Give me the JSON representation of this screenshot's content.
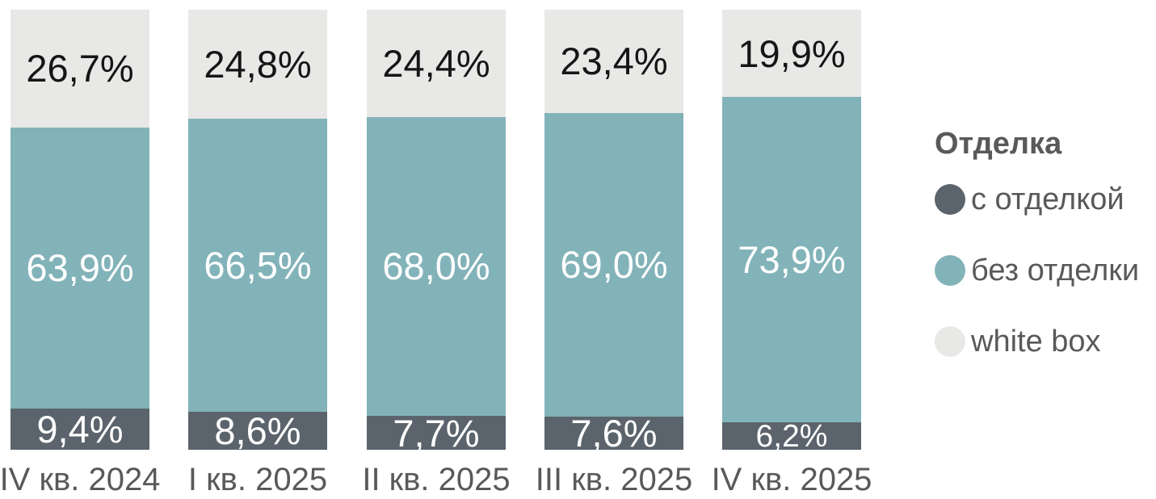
{
  "chart_data": {
    "type": "bar",
    "variant": "stacked-100",
    "title": "",
    "xlabel": "",
    "ylabel": "",
    "unit": "%",
    "ylim": [
      0,
      100
    ],
    "grid": false,
    "legend": {
      "title": "Отделка",
      "position": "right"
    },
    "categories": [
      "IV кв. 2024",
      "I кв. 2025",
      "II кв. 2025",
      "III кв. 2025",
      "IV кв. 2025"
    ],
    "series": [
      {
        "name": "с отделкой",
        "color": "#5b646c",
        "text_color": "#ffffff",
        "values": [
          9.4,
          8.6,
          7.7,
          7.6,
          6.2
        ],
        "labels": [
          "9,4%",
          "8,6%",
          "7,7%",
          "7,6%",
          "6,2%"
        ]
      },
      {
        "name": "без отделки",
        "color": "#82b3b9",
        "text_color": "#ffffff",
        "values": [
          63.9,
          66.5,
          68.0,
          69.0,
          73.9
        ],
        "labels": [
          "63,9%",
          "66,5%",
          "68,0%",
          "69,0%",
          "73,9%"
        ]
      },
      {
        "name": "white box",
        "color": "#e8e8e6",
        "text_color": "#151515",
        "values": [
          26.7,
          24.8,
          24.4,
          23.4,
          19.9
        ],
        "labels": [
          "26,7%",
          "24,8%",
          "24,4%",
          "23,4%",
          "19,9%"
        ]
      }
    ]
  }
}
